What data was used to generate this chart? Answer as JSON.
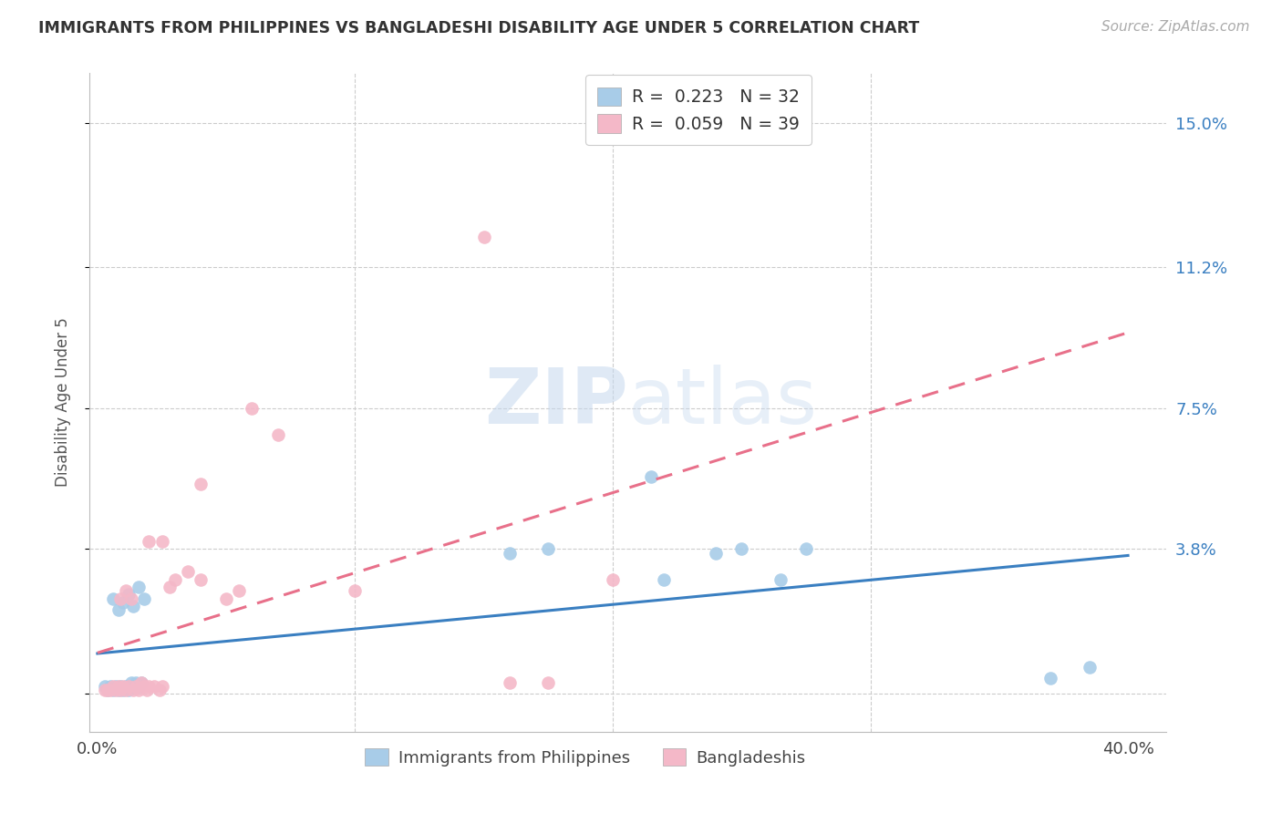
{
  "title": "IMMIGRANTS FROM PHILIPPINES VS BANGLADESHI DISABILITY AGE UNDER 5 CORRELATION CHART",
  "source": "Source: ZipAtlas.com",
  "ylabel": "Disability Age Under 5",
  "ytick_vals": [
    0.0,
    0.038,
    0.075,
    0.112,
    0.15
  ],
  "ytick_labels": [
    "",
    "3.8%",
    "7.5%",
    "11.2%",
    "15.0%"
  ],
  "xmin": -0.003,
  "xmax": 0.415,
  "ymin": -0.01,
  "ymax": 0.163,
  "color_blue_scatter": "#a8cce8",
  "color_pink_scatter": "#f4b8c8",
  "color_blue_line": "#3a7fc1",
  "color_pink_line": "#e8708a",
  "color_axis_text": "#3a7fc1",
  "color_grid": "#cccccc",
  "legend_label1": "R =  0.223   N = 32",
  "legend_label2": "R =  0.059   N = 39",
  "bottom_legend1": "Immigrants from Philippines",
  "bottom_legend2": "Bangladeshis",
  "watermark": "ZIPatlas",
  "phil_x": [
    0.003,
    0.004,
    0.005,
    0.006,
    0.007,
    0.008,
    0.009,
    0.01,
    0.011,
    0.012,
    0.013,
    0.014,
    0.015,
    0.016,
    0.017,
    0.018,
    0.006,
    0.008,
    0.01,
    0.012,
    0.014,
    0.016,
    0.16,
    0.175,
    0.215,
    0.22,
    0.265,
    0.275,
    0.24,
    0.25,
    0.37,
    0.385
  ],
  "phil_y": [
    0.002,
    0.001,
    0.002,
    0.001,
    0.002,
    0.001,
    0.002,
    0.001,
    0.002,
    0.001,
    0.003,
    0.002,
    0.003,
    0.002,
    0.003,
    0.025,
    0.025,
    0.022,
    0.024,
    0.026,
    0.023,
    0.028,
    0.037,
    0.038,
    0.057,
    0.03,
    0.03,
    0.038,
    0.037,
    0.038,
    0.004,
    0.007
  ],
  "bang_x": [
    0.003,
    0.004,
    0.005,
    0.006,
    0.007,
    0.008,
    0.009,
    0.01,
    0.011,
    0.012,
    0.014,
    0.015,
    0.016,
    0.017,
    0.018,
    0.019,
    0.02,
    0.022,
    0.024,
    0.025,
    0.009,
    0.011,
    0.013,
    0.05,
    0.055,
    0.03,
    0.035,
    0.04,
    0.16,
    0.04,
    0.06,
    0.07,
    0.175,
    0.15,
    0.2,
    0.02,
    0.025,
    0.1,
    0.028
  ],
  "bang_y": [
    0.001,
    0.001,
    0.001,
    0.002,
    0.001,
    0.002,
    0.001,
    0.002,
    0.001,
    0.002,
    0.001,
    0.002,
    0.001,
    0.003,
    0.002,
    0.001,
    0.002,
    0.002,
    0.001,
    0.002,
    0.025,
    0.027,
    0.025,
    0.025,
    0.027,
    0.03,
    0.032,
    0.03,
    0.003,
    0.055,
    0.075,
    0.068,
    0.003,
    0.12,
    0.03,
    0.04,
    0.04,
    0.027,
    0.028
  ]
}
